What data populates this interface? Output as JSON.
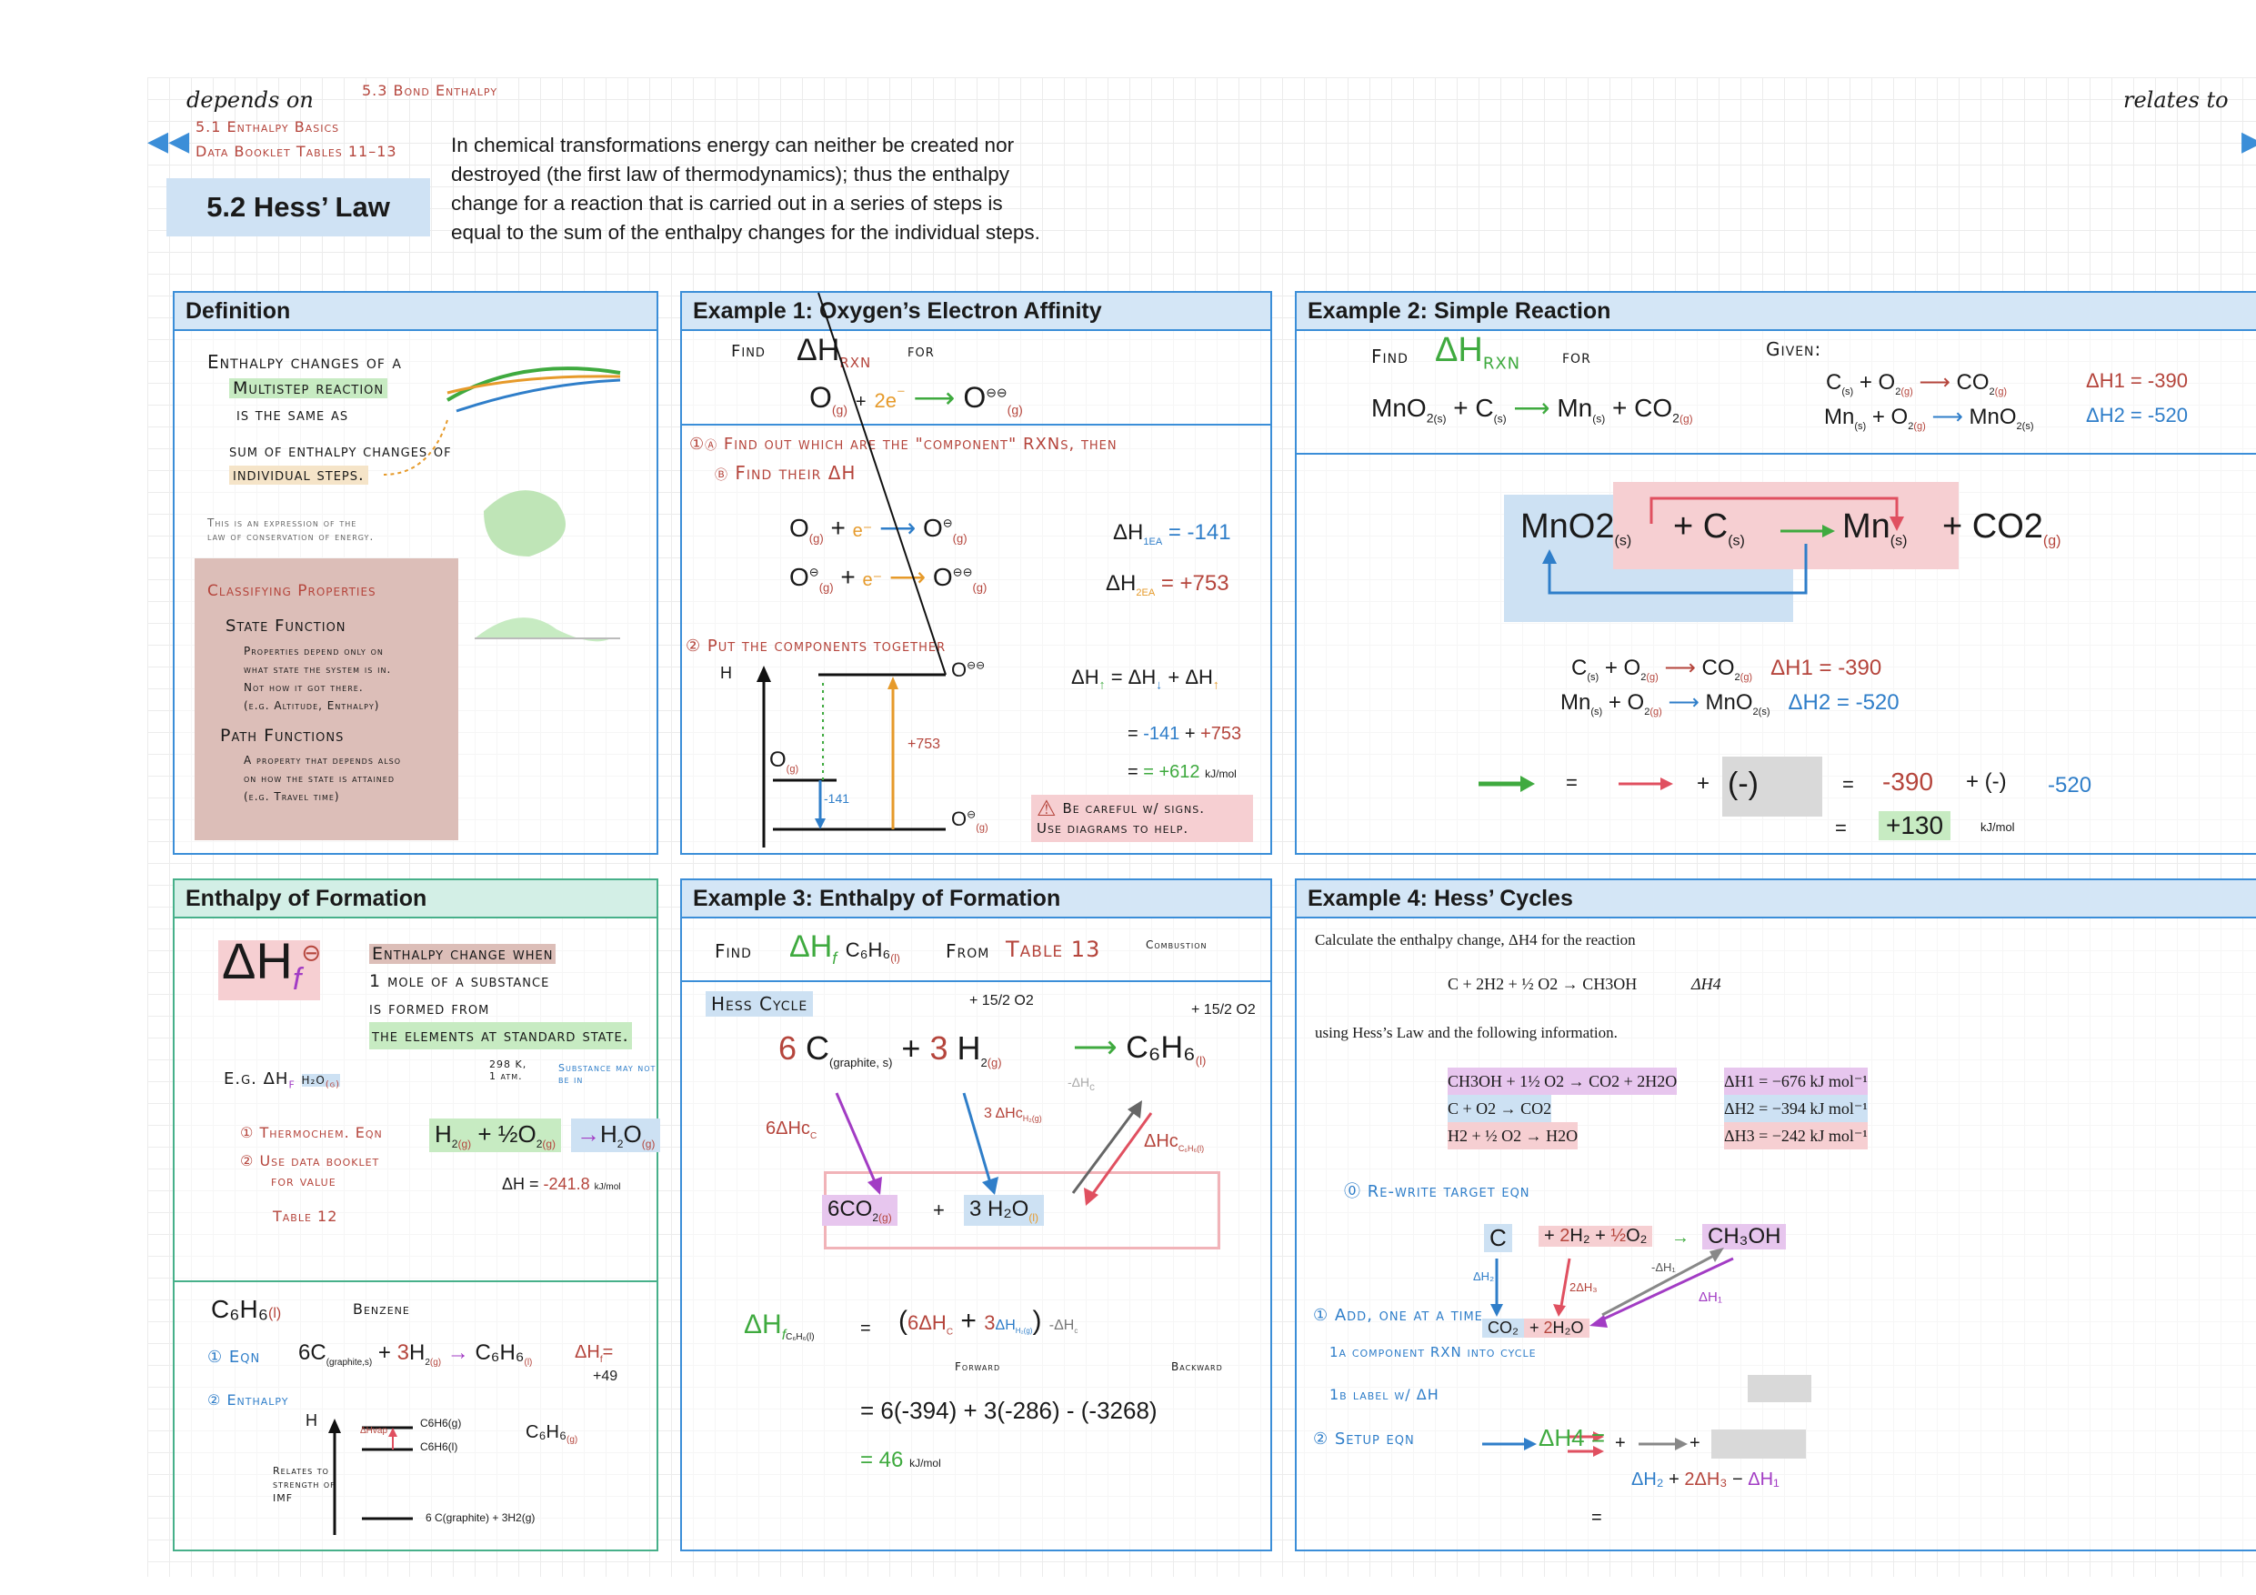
{
  "header": {
    "depends_on": "depends on",
    "relates_to": "relates to",
    "deps": [
      "5.3 Bond Enthalpy",
      "5.1 Enthalpy Basics",
      "Data Booklet Tables 11–13"
    ],
    "title": "5.2 Hess’ Law",
    "intro_lines": [
      "In chemical transformations energy can neither be created nor",
      "destroyed (the first law of thermodynamics); thus the enthalpy",
      "change for a reaction that is carried out in a series of steps is",
      "equal to the sum of the enthalpy changes for the individual steps."
    ]
  },
  "definition": {
    "title": "Definition",
    "l1": "Enthalpy changes of a",
    "multistep": "Multistep reaction",
    "l3": "is the same as",
    "l4": "sum of enthalpy changes of",
    "individual": "individual steps.",
    "note": [
      "This is an expression of the",
      "law of conservation of energy."
    ],
    "classifying": "Classifying Properties",
    "state_fn": "State Function",
    "state_desc": [
      "Properties depend only on",
      "what state the system is in.",
      "Not how it got there.",
      "(e.g. Altitude, Enthalpy)"
    ],
    "path_fn": "Path Functions",
    "path_desc": [
      "A property that depends also",
      "on how the state is attained",
      "(e.g. Travel time)"
    ]
  },
  "ex1": {
    "title": "Example 1: Oxygen’s Electron Affinity",
    "find": "Find",
    "dh": "ΔH",
    "rxn": "RXN",
    "for": "for",
    "step_a": "Find out which are the \"component\" RXNs, then",
    "step_b": "Find their ΔH",
    "dh1ea": "ΔH",
    "sub1": "1EA",
    "v1": "= -141",
    "sub2": "2EA",
    "v2": "= +753",
    "step2": "Put the components together",
    "h": "H",
    "eq_top": "ΔH = ΔH + ΔH",
    "eq_mid": "= -141 + +753",
    "eq_bot": "= +612",
    "unit": "kJ/mol",
    "lbl753": "+753",
    "lbl141": "-141",
    "careful": [
      "Be careful w/ signs.",
      "Use diagrams to help."
    ]
  },
  "ex2": {
    "title": "Example 2: Simple Reaction",
    "find": "Find",
    "dh": "ΔH",
    "rxn": "RXN",
    "for": "for",
    "given": "Given:",
    "r1_lhs": "C(s) + O2(g)",
    "r1_rhs": "CO2(g)",
    "r1_dh": "ΔH1 = -390",
    "r2_lhs": "Mn(s) + O2(g)",
    "r2_rhs": "MnO2(s)",
    "r2_dh": "ΔH2 = -520",
    "cyc_a": "MnO2",
    "cyc_b": "C",
    "cyc_c": "Mn",
    "cyc_d": "CO2",
    "eq": "= → + (-)→ = -390 + (-) -520",
    "m390": "-390",
    "m520": "-520",
    "result": "+130",
    "unit": "kJ/mol"
  },
  "eof": {
    "title": "Enthalpy of Formation",
    "desc": [
      "Enthalpy change when",
      "1 mole of a substance",
      "is formed from",
      "the elements at standard state."
    ],
    "std": [
      "298 K,",
      "1 atm."
    ],
    "subs": [
      "Substance may not",
      "be in"
    ],
    "eg": "E.g.",
    "s1": "Thermochem. Eqn",
    "s2": [
      "Use data booklet",
      "for value"
    ],
    "table": "Table 12",
    "dh_val": "ΔH = -241.8",
    "unit": "kJ/mol",
    "benz": "C6H6(l)",
    "benz_name": "Benzene",
    "b1": "Eqn",
    "b1_val": "ΔHf = +49",
    "b2": "Enthalpy",
    "h": "H",
    "relates": [
      "Relates to",
      "strength of",
      "IMF"
    ],
    "lv1": "C6H6(g)",
    "lv2": "C6H6(l)",
    "lv3": "6 C(graphite) + 3H2(g)",
    "vap": "ΔHvap"
  },
  "ex3": {
    "title": "Example 3: Enthalpy of Formation",
    "find": "Find",
    "from": "From",
    "table": "Table 13",
    "combustion": "Combustion",
    "hess": "Hess Cycle",
    "o2a": "+ 15/2 O2",
    "o2b": "+ 15/2 O2",
    "lhs": "6 C(graphite, s) + 3 H2(g)",
    "rhs": "C6H6(l)",
    "prod": "6 CO2(g) + 3 H2O(l)",
    "dhc6": "6ΔHc",
    "dhc3": "3 ΔHc",
    "dhcb": "ΔHc",
    "forward": "Forward",
    "backward": "Backward",
    "calc1": "= 6(-394) + 3(-286) - (-3268)",
    "calc2": "= 46",
    "unit": "kJ/mol"
  },
  "ex4": {
    "title": "Example 4: Hess’ Cycles",
    "q": "Calculate the enthalpy change, ΔH4 for the reaction",
    "rxn": "C + 2H2 + ½ O2 → CH3OH",
    "rxn_dh": "ΔH4",
    "using": "using Hess’s Law and the following information.",
    "info": [
      {
        "eq": "CH3OH + 1½ O2 → CO2 + 2H2O",
        "dh": "ΔH1 = −676 kJ mol⁻¹"
      },
      {
        "eq": "C + O2 → CO2",
        "dh": "ΔH2 = −394 kJ mol⁻¹"
      },
      {
        "eq": "H2 + ½ O2 → H2O",
        "dh": "ΔH3 = −242 kJ mol⁻¹"
      }
    ],
    "s0": "Re-write target eqn",
    "s1": "Add, one at a time",
    "s1a": "component RXN into cycle",
    "s1b": "label w/ ΔH",
    "s2": "Setup eqn",
    "dh4": "ΔH4 =",
    "final": "ΔH2 + 2ΔH3 - ΔH1",
    "eqsign": "="
  }
}
